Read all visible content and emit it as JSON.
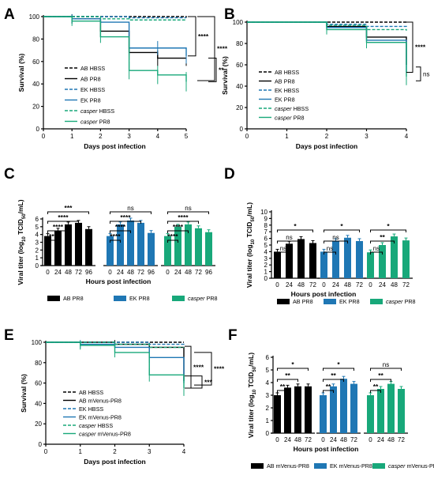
{
  "colors": {
    "black": "#000000",
    "blue": "#1f77b4",
    "green": "#18a87a"
  },
  "chart_data": [
    {
      "panel": "A",
      "type": "line",
      "ylabel": "Survival (%)",
      "xlabel": "Days post infection",
      "xlim": [
        0,
        5
      ],
      "ylim": [
        0,
        100
      ],
      "xticks": [
        0,
        1,
        2,
        3,
        4,
        5
      ],
      "yticks": [
        0,
        20,
        40,
        60,
        80,
        100
      ],
      "series": [
        {
          "name": "AB HBSS",
          "color": "black",
          "dash": true,
          "points": [
            [
              0,
              100
            ],
            [
              1,
              100
            ],
            [
              2,
              100
            ],
            [
              3,
              100
            ],
            [
              4,
              100
            ],
            [
              5,
              99
            ]
          ]
        },
        {
          "name": "AB PR8",
          "color": "black",
          "dash": false,
          "points": [
            [
              0,
              100
            ],
            [
              1,
              98
            ],
            [
              2,
              87
            ],
            [
              3,
              68
            ],
            [
              4,
              63
            ],
            [
              5,
              63
            ]
          ]
        },
        {
          "name": "EK HBSS",
          "color": "blue",
          "dash": true,
          "points": [
            [
              0,
              100
            ],
            [
              1,
              100
            ],
            [
              2,
              100
            ],
            [
              3,
              99
            ],
            [
              4,
              99
            ],
            [
              5,
              99
            ]
          ]
        },
        {
          "name": "EK PR8",
          "color": "blue",
          "dash": false,
          "points": [
            [
              0,
              100
            ],
            [
              1,
              98
            ],
            [
              2,
              95
            ],
            [
              3,
              72
            ],
            [
              4,
              72
            ],
            [
              5,
              65
            ]
          ]
        },
        {
          "name": "casper HBSS",
          "color": "green",
          "dash": true,
          "points": [
            [
              0,
              100
            ],
            [
              1,
              100
            ],
            [
              2,
              98
            ],
            [
              3,
              97
            ],
            [
              4,
              97
            ],
            [
              5,
              97
            ]
          ]
        },
        {
          "name": "casper PR8",
          "color": "green",
          "dash": false,
          "points": [
            [
              0,
              100
            ],
            [
              1,
              96
            ],
            [
              2,
              82
            ],
            [
              3,
              52
            ],
            [
              4,
              48
            ],
            [
              5,
              42
            ]
          ]
        }
      ],
      "significance": [
        "****",
        "****",
        "**"
      ]
    },
    {
      "panel": "B",
      "type": "line",
      "ylabel": "Survival (%)",
      "xlabel": "Days post infection",
      "xlim": [
        0,
        4
      ],
      "ylim": [
        0,
        100
      ],
      "xticks": [
        0,
        1,
        2,
        3,
        4
      ],
      "yticks": [
        0,
        20,
        40,
        60,
        80,
        100
      ],
      "series": [
        {
          "name": "AB HBSS",
          "color": "black",
          "dash": true,
          "points": [
            [
              0,
              100
            ],
            [
              1,
              100
            ],
            [
              2,
              100
            ],
            [
              3,
              100
            ],
            [
              4,
              100
            ]
          ]
        },
        {
          "name": "AB PR8",
          "color": "black",
          "dash": false,
          "points": [
            [
              0,
              100
            ],
            [
              1,
              100
            ],
            [
              2,
              96
            ],
            [
              3,
              86
            ],
            [
              4,
              60
            ]
          ]
        },
        {
          "name": "EK HBSS",
          "color": "blue",
          "dash": true,
          "points": [
            [
              0,
              100
            ],
            [
              1,
              100
            ],
            [
              2,
              98
            ],
            [
              3,
              96
            ],
            [
              4,
              95
            ]
          ]
        },
        {
          "name": "EK PR8",
          "color": "blue",
          "dash": false,
          "points": [
            [
              0,
              100
            ],
            [
              1,
              100
            ],
            [
              2,
              95
            ],
            [
              3,
              83
            ],
            [
              4,
              53
            ]
          ]
        },
        {
          "name": "casper HBSS",
          "color": "green",
          "dash": true,
          "points": [
            [
              0,
              100
            ],
            [
              1,
              100
            ],
            [
              2,
              97
            ],
            [
              3,
              93
            ],
            [
              4,
              92
            ]
          ]
        },
        {
          "name": "casper PR8",
          "color": "green",
          "dash": false,
          "points": [
            [
              0,
              100
            ],
            [
              1,
              100
            ],
            [
              2,
              93
            ],
            [
              3,
              81
            ],
            [
              4,
              49
            ]
          ]
        }
      ],
      "significance": [
        "****",
        "ns"
      ]
    },
    {
      "panel": "C",
      "type": "bar",
      "ylabel": "Viral titer (log10 TCID50/mL)",
      "xlabel": "Hours post infection",
      "ylim": [
        0,
        6
      ],
      "yticks": [
        0,
        1,
        2,
        3,
        4,
        5,
        6
      ],
      "groups": [
        {
          "name": "AB PR8",
          "color": "black",
          "categories": [
            "0",
            "24",
            "48",
            "72",
            "96"
          ],
          "values": [
            3.8,
            4.5,
            5.3,
            5.5,
            4.7
          ]
        },
        {
          "name": "EK PR8",
          "color": "blue",
          "categories": [
            "0",
            "24",
            "48",
            "72",
            "96"
          ],
          "values": [
            3.8,
            5.3,
            5.8,
            5.5,
            4.2
          ]
        },
        {
          "name": "casper PR8",
          "color": "green",
          "categories": [
            "0",
            "24",
            "48",
            "72",
            "96"
          ],
          "values": [
            3.8,
            5.0,
            5.3,
            4.8,
            4.3
          ]
        }
      ],
      "significance": [
        [
          "***",
          "****",
          "****",
          "***"
        ],
        [
          "****",
          "****",
          "****",
          "ns"
        ],
        [
          "****",
          "****",
          "****",
          "ns"
        ]
      ]
    },
    {
      "panel": "D",
      "type": "bar",
      "ylabel": "Viral titer (log10 TCID50/mL)",
      "xlabel": "Hours post infection",
      "ylim": [
        0,
        10
      ],
      "yticks": [
        0,
        1,
        2,
        3,
        4,
        5,
        6,
        7,
        8,
        9,
        10
      ],
      "groups": [
        {
          "name": "AB PR8",
          "color": "black",
          "categories": [
            "0",
            "24",
            "48",
            "72"
          ],
          "values": [
            4.0,
            5.2,
            5.9,
            5.3
          ]
        },
        {
          "name": "EK PR8",
          "color": "blue",
          "categories": [
            "0",
            "24",
            "48",
            "72"
          ],
          "values": [
            4.0,
            5.6,
            6.1,
            5.6
          ]
        },
        {
          "name": "casper PR8",
          "color": "green",
          "categories": [
            "0",
            "24",
            "48",
            "72"
          ],
          "values": [
            3.9,
            5.0,
            6.3,
            5.7
          ]
        }
      ],
      "significance": [
        [
          "ns",
          "ns",
          "*"
        ],
        [
          "ns",
          "ns",
          "*"
        ],
        [
          "ns",
          "**",
          "*"
        ]
      ]
    },
    {
      "panel": "E",
      "type": "line",
      "ylabel": "Survival (%)",
      "xlabel": "Days post infection",
      "xlim": [
        0,
        4
      ],
      "ylim": [
        0,
        100
      ],
      "xticks": [
        0,
        1,
        2,
        3,
        4
      ],
      "yticks": [
        0,
        20,
        40,
        60,
        80,
        100
      ],
      "series": [
        {
          "name": "AB HBSS",
          "color": "black",
          "dash": true,
          "points": [
            [
              0,
              100
            ],
            [
              1,
              100
            ],
            [
              2,
              100
            ],
            [
              3,
              100
            ],
            [
              4,
              100
            ]
          ]
        },
        {
          "name": "AB mVenus-PR8",
          "color": "black",
          "dash": false,
          "points": [
            [
              0,
              100
            ],
            [
              1,
              100
            ],
            [
              2,
              98
            ],
            [
              3,
              95
            ],
            [
              4,
              62
            ]
          ]
        },
        {
          "name": "EK HBSS",
          "color": "blue",
          "dash": true,
          "points": [
            [
              0,
              100
            ],
            [
              1,
              100
            ],
            [
              2,
              100
            ],
            [
              3,
              98
            ],
            [
              4,
              97
            ]
          ]
        },
        {
          "name": "EK mVenus-PR8",
          "color": "blue",
          "dash": false,
          "points": [
            [
              0,
              100
            ],
            [
              1,
              98
            ],
            [
              2,
              95
            ],
            [
              3,
              85
            ],
            [
              4,
              60
            ]
          ]
        },
        {
          "name": "casper HBSS",
          "color": "green",
          "dash": true,
          "points": [
            [
              0,
              100
            ],
            [
              1,
              100
            ],
            [
              2,
              98
            ],
            [
              3,
              95
            ],
            [
              4,
              95
            ]
          ]
        },
        {
          "name": "casper mVenus-PR8",
          "color": "green",
          "dash": false,
          "points": [
            [
              0,
              100
            ],
            [
              1,
              97
            ],
            [
              2,
              90
            ],
            [
              3,
              68
            ],
            [
              4,
              55
            ]
          ]
        }
      ],
      "significance": [
        "****",
        "***",
        "****"
      ]
    },
    {
      "panel": "F",
      "type": "bar",
      "ylabel": "Viral titer (log10 TCID50/mL)",
      "xlabel": "Hours post infection",
      "ylim": [
        0,
        6
      ],
      "yticks": [
        0,
        1,
        2,
        3,
        4,
        5,
        6
      ],
      "groups": [
        {
          "name": "AB mVenus-PR8",
          "color": "black",
          "categories": [
            "0",
            "24",
            "48",
            "72"
          ],
          "values": [
            3.0,
            3.6,
            3.7,
            3.7
          ]
        },
        {
          "name": "EK mVenus-PR8",
          "color": "blue",
          "categories": [
            "0",
            "24",
            "48",
            "72"
          ],
          "values": [
            3.0,
            3.7,
            4.3,
            3.9
          ]
        },
        {
          "name": "casper mVenus-PR8",
          "color": "green",
          "categories": [
            "0",
            "24",
            "48",
            "72"
          ],
          "values": [
            3.0,
            3.5,
            3.9,
            3.5
          ]
        }
      ],
      "significance": [
        [
          "**",
          "**",
          "*"
        ],
        [
          "**",
          "**",
          "*"
        ],
        [
          "**",
          "**",
          "ns"
        ]
      ]
    }
  ]
}
